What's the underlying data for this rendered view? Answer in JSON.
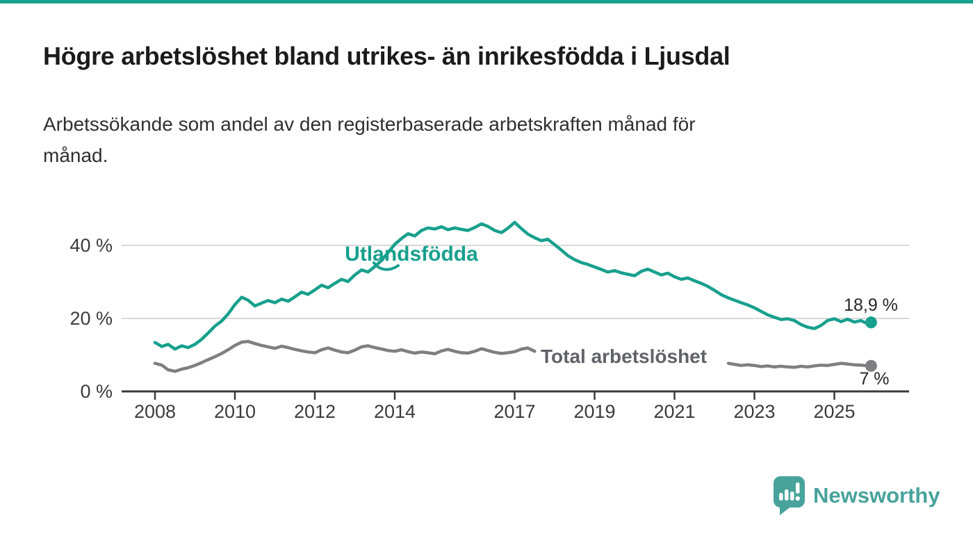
{
  "meta": {
    "colors": {
      "accent_teal": "#17a08d",
      "line_gray": "#7e7e83",
      "gray_label": "#616168",
      "grid": "#d8d8d8",
      "axis": "#3a3a3a",
      "logo_teal": "#47a39b"
    }
  },
  "header": {
    "title": "Högre arbetslöshet bland utrikes- än inrikesfödda i Ljusdal",
    "subtitle_lines": [
      "Arbetssökande som andel av den registerbaserade arbetskraften månad för",
      "månad."
    ]
  },
  "chart_data": {
    "type": "line",
    "title": "Högre arbetslöshet bland utrikes- än inrikesfödda i Ljusdal",
    "subtitle": "Arbetssökande som andel av den registerbaserade arbetskraften månad för månad.",
    "unit": "%",
    "grid": "horizontal",
    "x_axis": {
      "ticks": [
        2008,
        2010,
        2012,
        2014,
        2017,
        2019,
        2021,
        2023,
        2025
      ],
      "data_range": [
        2008.0,
        2025.92
      ]
    },
    "y_axis": {
      "ticks": [
        0,
        20,
        40
      ],
      "tick_labels": [
        "0 %",
        "20 %",
        "40 %"
      ],
      "range": [
        0,
        50
      ]
    },
    "series": [
      {
        "name": "Utlandsfödda",
        "color": "#17a08d",
        "end_value": 18.9,
        "end_label": "18,9 %",
        "points": [
          [
            2008.0,
            13.4
          ],
          [
            2008.17,
            12.3
          ],
          [
            2008.33,
            12.9
          ],
          [
            2008.5,
            11.6
          ],
          [
            2008.67,
            12.5
          ],
          [
            2008.83,
            12.0
          ],
          [
            2009.0,
            12.9
          ],
          [
            2009.17,
            14.3
          ],
          [
            2009.33,
            16.0
          ],
          [
            2009.5,
            17.9
          ],
          [
            2009.67,
            19.3
          ],
          [
            2009.83,
            21.2
          ],
          [
            2010.0,
            23.8
          ],
          [
            2010.17,
            25.8
          ],
          [
            2010.33,
            25.0
          ],
          [
            2010.5,
            23.4
          ],
          [
            2010.67,
            24.2
          ],
          [
            2010.83,
            24.9
          ],
          [
            2011.0,
            24.3
          ],
          [
            2011.17,
            25.3
          ],
          [
            2011.33,
            24.7
          ],
          [
            2011.5,
            25.9
          ],
          [
            2011.67,
            27.2
          ],
          [
            2011.83,
            26.6
          ],
          [
            2012.0,
            27.8
          ],
          [
            2012.17,
            29.1
          ],
          [
            2012.33,
            28.4
          ],
          [
            2012.5,
            29.6
          ],
          [
            2012.67,
            30.7
          ],
          [
            2012.83,
            30.1
          ],
          [
            2013.0,
            31.9
          ],
          [
            2013.17,
            33.3
          ],
          [
            2013.33,
            32.7
          ],
          [
            2013.5,
            34.2
          ],
          [
            2013.67,
            35.9
          ],
          [
            2013.83,
            38.0
          ],
          [
            2014.0,
            40.3
          ],
          [
            2014.17,
            41.9
          ],
          [
            2014.33,
            43.2
          ],
          [
            2014.5,
            42.6
          ],
          [
            2014.67,
            44.1
          ],
          [
            2014.83,
            44.8
          ],
          [
            2015.0,
            44.5
          ],
          [
            2015.17,
            45.1
          ],
          [
            2015.33,
            44.3
          ],
          [
            2015.5,
            44.8
          ],
          [
            2015.67,
            44.4
          ],
          [
            2015.83,
            44.1
          ],
          [
            2016.0,
            44.9
          ],
          [
            2016.17,
            45.9
          ],
          [
            2016.33,
            45.2
          ],
          [
            2016.5,
            44.1
          ],
          [
            2016.67,
            43.5
          ],
          [
            2016.83,
            44.7
          ],
          [
            2017.0,
            46.3
          ],
          [
            2017.17,
            44.6
          ],
          [
            2017.33,
            43.1
          ],
          [
            2017.5,
            42.1
          ],
          [
            2017.67,
            41.3
          ],
          [
            2017.83,
            41.7
          ],
          [
            2018.0,
            40.2
          ],
          [
            2018.17,
            38.7
          ],
          [
            2018.33,
            37.2
          ],
          [
            2018.5,
            36.1
          ],
          [
            2018.67,
            35.3
          ],
          [
            2018.83,
            34.8
          ],
          [
            2019.0,
            34.1
          ],
          [
            2019.17,
            33.4
          ],
          [
            2019.33,
            32.7
          ],
          [
            2019.5,
            33.1
          ],
          [
            2019.67,
            32.5
          ],
          [
            2019.83,
            32.1
          ],
          [
            2020.0,
            31.7
          ],
          [
            2020.17,
            32.9
          ],
          [
            2020.33,
            33.5
          ],
          [
            2020.5,
            32.7
          ],
          [
            2020.67,
            31.9
          ],
          [
            2020.83,
            32.4
          ],
          [
            2021.0,
            31.4
          ],
          [
            2021.17,
            30.7
          ],
          [
            2021.33,
            31.1
          ],
          [
            2021.5,
            30.3
          ],
          [
            2021.67,
            29.6
          ],
          [
            2021.83,
            28.8
          ],
          [
            2022.0,
            27.7
          ],
          [
            2022.17,
            26.5
          ],
          [
            2022.33,
            25.7
          ],
          [
            2022.5,
            25.0
          ],
          [
            2022.67,
            24.3
          ],
          [
            2022.83,
            23.7
          ],
          [
            2023.0,
            22.9
          ],
          [
            2023.17,
            21.9
          ],
          [
            2023.33,
            21.0
          ],
          [
            2023.5,
            20.3
          ],
          [
            2023.67,
            19.7
          ],
          [
            2023.83,
            19.9
          ],
          [
            2024.0,
            19.4
          ],
          [
            2024.17,
            18.3
          ],
          [
            2024.33,
            17.6
          ],
          [
            2024.5,
            17.2
          ],
          [
            2024.67,
            18.1
          ],
          [
            2024.83,
            19.4
          ],
          [
            2025.0,
            19.9
          ],
          [
            2025.17,
            19.1
          ],
          [
            2025.33,
            19.8
          ],
          [
            2025.5,
            19.0
          ],
          [
            2025.67,
            19.4
          ],
          [
            2025.83,
            18.5
          ],
          [
            2025.92,
            18.9
          ]
        ]
      },
      {
        "name": "Total arbetslöshet",
        "color": "#7e7e83",
        "end_value": 7.0,
        "end_label": "7 %",
        "points": [
          [
            2008.0,
            7.7
          ],
          [
            2008.17,
            7.2
          ],
          [
            2008.33,
            5.9
          ],
          [
            2008.5,
            5.5
          ],
          [
            2008.67,
            6.1
          ],
          [
            2008.83,
            6.5
          ],
          [
            2009.0,
            7.1
          ],
          [
            2009.17,
            7.9
          ],
          [
            2009.33,
            8.7
          ],
          [
            2009.5,
            9.5
          ],
          [
            2009.67,
            10.4
          ],
          [
            2009.83,
            11.4
          ],
          [
            2010.0,
            12.6
          ],
          [
            2010.17,
            13.5
          ],
          [
            2010.33,
            13.7
          ],
          [
            2010.5,
            13.1
          ],
          [
            2010.67,
            12.6
          ],
          [
            2010.83,
            12.2
          ],
          [
            2011.0,
            11.8
          ],
          [
            2011.17,
            12.4
          ],
          [
            2011.33,
            12.0
          ],
          [
            2011.5,
            11.5
          ],
          [
            2011.67,
            11.1
          ],
          [
            2011.83,
            10.8
          ],
          [
            2012.0,
            10.6
          ],
          [
            2012.17,
            11.4
          ],
          [
            2012.33,
            11.9
          ],
          [
            2012.5,
            11.3
          ],
          [
            2012.67,
            10.8
          ],
          [
            2012.83,
            10.6
          ],
          [
            2013.0,
            11.3
          ],
          [
            2013.17,
            12.2
          ],
          [
            2013.33,
            12.5
          ],
          [
            2013.5,
            12.0
          ],
          [
            2013.67,
            11.6
          ],
          [
            2013.83,
            11.2
          ],
          [
            2014.0,
            11.0
          ],
          [
            2014.17,
            11.4
          ],
          [
            2014.33,
            10.9
          ],
          [
            2014.5,
            10.5
          ],
          [
            2014.67,
            10.8
          ],
          [
            2014.83,
            10.6
          ],
          [
            2015.0,
            10.3
          ],
          [
            2015.17,
            11.1
          ],
          [
            2015.33,
            11.5
          ],
          [
            2015.5,
            11.0
          ],
          [
            2015.67,
            10.6
          ],
          [
            2015.83,
            10.5
          ],
          [
            2016.0,
            11.0
          ],
          [
            2016.17,
            11.7
          ],
          [
            2016.33,
            11.2
          ],
          [
            2016.5,
            10.7
          ],
          [
            2016.67,
            10.4
          ],
          [
            2016.83,
            10.6
          ],
          [
            2017.0,
            10.9
          ],
          [
            2017.17,
            11.6
          ],
          [
            2017.33,
            11.9
          ],
          [
            2017.5,
            11.0
          ],
          null,
          [
            2022.35,
            7.7
          ],
          [
            2022.5,
            7.4
          ],
          [
            2022.67,
            7.1
          ],
          [
            2022.83,
            7.3
          ],
          [
            2023.0,
            7.1
          ],
          [
            2023.17,
            6.8
          ],
          [
            2023.33,
            7.0
          ],
          [
            2023.5,
            6.7
          ],
          [
            2023.67,
            6.9
          ],
          [
            2023.83,
            6.7
          ],
          [
            2024.0,
            6.6
          ],
          [
            2024.17,
            6.9
          ],
          [
            2024.33,
            6.7
          ],
          [
            2024.5,
            7.0
          ],
          [
            2024.67,
            7.2
          ],
          [
            2024.83,
            7.1
          ],
          [
            2025.0,
            7.4
          ],
          [
            2025.17,
            7.7
          ],
          [
            2025.33,
            7.5
          ],
          [
            2025.5,
            7.3
          ],
          [
            2025.67,
            7.2
          ],
          [
            2025.83,
            7.0
          ],
          [
            2025.92,
            7.0
          ]
        ]
      }
    ],
    "annotations": [
      {
        "text": "18,9 %",
        "series": "Utlandsfödda",
        "position": "above-end"
      },
      {
        "text": "7 %",
        "series": "Total arbetslöshet",
        "position": "below-end"
      }
    ],
    "legend_position": "inline-labels"
  },
  "footer": {
    "logo_text": "Newsworthy"
  }
}
